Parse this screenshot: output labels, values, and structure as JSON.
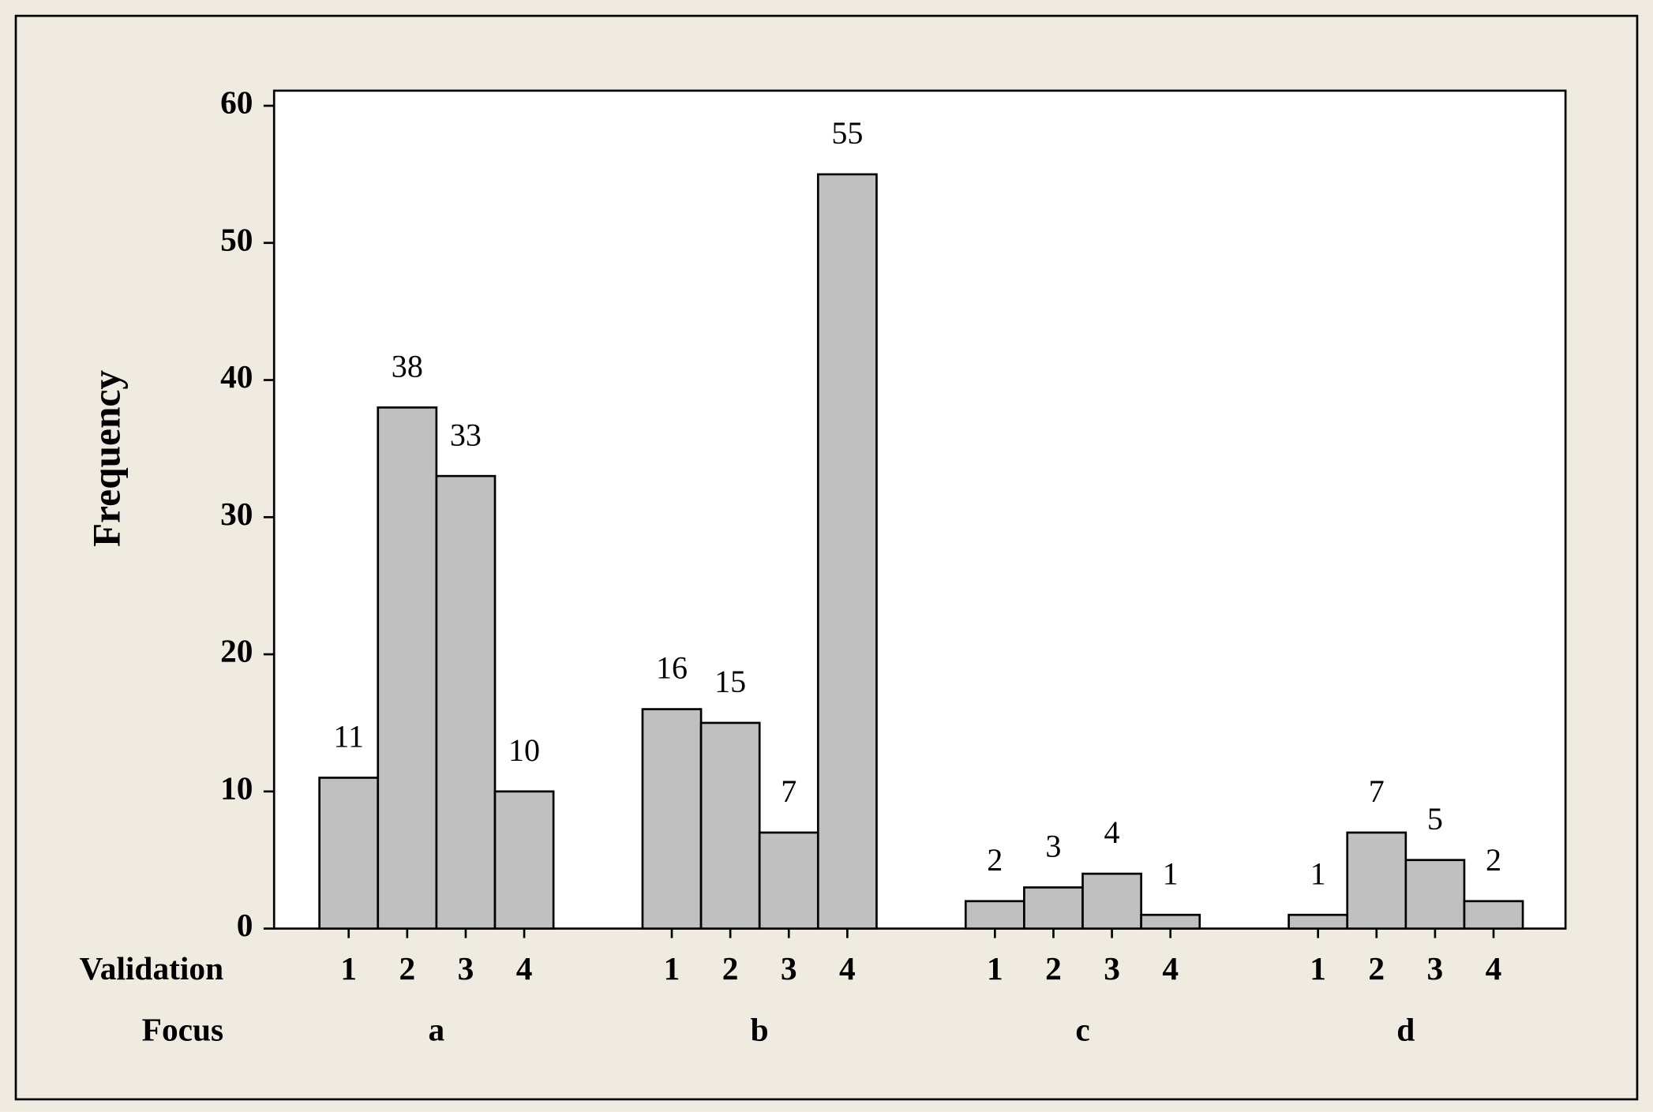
{
  "chart_data": {
    "type": "grouped-bar",
    "y_label": "Frequency",
    "level_labels": [
      "Validation",
      "Focus"
    ],
    "subcategories": [
      "1",
      "2",
      "3",
      "4"
    ],
    "groups": [
      {
        "name": "a",
        "values": [
          11,
          38,
          33,
          10
        ]
      },
      {
        "name": "b",
        "values": [
          16,
          15,
          7,
          55
        ]
      },
      {
        "name": "c",
        "values": [
          2,
          3,
          4,
          1
        ]
      },
      {
        "name": "d",
        "values": [
          1,
          7,
          5,
          2
        ]
      }
    ],
    "color": "#c0c0c0",
    "ylim": [
      0,
      61.1
    ],
    "yticks": [
      0,
      10,
      20,
      30,
      40,
      50,
      60
    ],
    "grid": false
  }
}
